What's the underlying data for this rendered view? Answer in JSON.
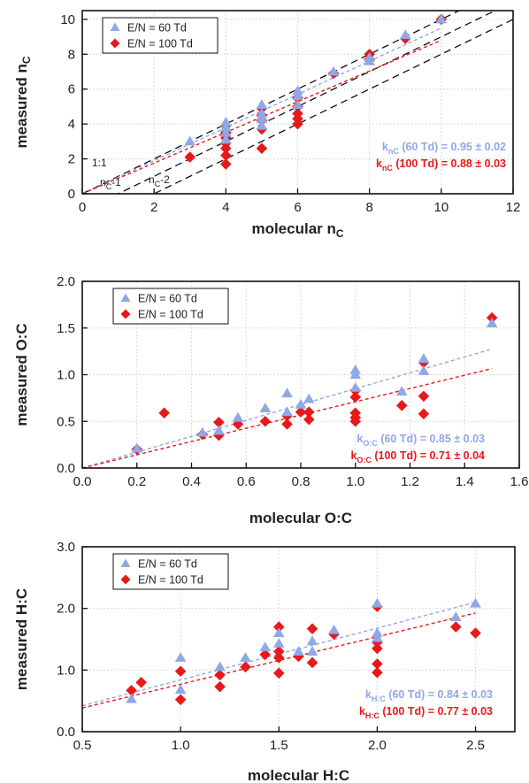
{
  "chart_data": [
    {
      "type": "scatter",
      "xlabel": "molecular n",
      "xlabel_sub": "C",
      "ylabel": "measured n",
      "ylabel_sub": "C",
      "xlim": [
        0,
        12
      ],
      "ylim": [
        0,
        10.5
      ],
      "xticks": [
        0,
        2,
        4,
        6,
        8,
        10,
        12
      ],
      "yticks": [
        0,
        2,
        4,
        6,
        8,
        10
      ],
      "tick_decimals": 0,
      "grid": true,
      "legend_position": "top-left",
      "series": [
        {
          "name": "E/N = 60 Td",
          "marker": "triangle",
          "color": "#8FA8E6",
          "fit_slope": 0.95,
          "points": [
            [
              3,
              3.0
            ],
            [
              4,
              4.1
            ],
            [
              4,
              3.8
            ],
            [
              4,
              3.5
            ],
            [
              4,
              3.1
            ],
            [
              5,
              5.1
            ],
            [
              5,
              4.6
            ],
            [
              5,
              4.3
            ],
            [
              5,
              3.9
            ],
            [
              6,
              5.9
            ],
            [
              6,
              5.6
            ],
            [
              6,
              5.1
            ],
            [
              7,
              7.0
            ],
            [
              8,
              7.8
            ],
            [
              8,
              7.6
            ],
            [
              9,
              9.1
            ],
            [
              10,
              10.0
            ]
          ]
        },
        {
          "name": "E/N = 100 Td",
          "marker": "diamond",
          "color": "#E8191B",
          "fit_slope": 0.88,
          "points": [
            [
              3,
              2.1
            ],
            [
              4,
              3.9
            ],
            [
              4,
              3.5
            ],
            [
              4,
              3.2
            ],
            [
              4,
              2.9
            ],
            [
              4,
              2.6
            ],
            [
              4,
              2.2
            ],
            [
              4,
              1.7
            ],
            [
              5,
              4.9
            ],
            [
              5,
              4.5
            ],
            [
              5,
              4.2
            ],
            [
              5,
              3.7
            ],
            [
              5,
              2.6
            ],
            [
              6,
              5.5
            ],
            [
              6,
              5.0
            ],
            [
              6,
              4.6
            ],
            [
              6,
              4.3
            ],
            [
              6,
              4.0
            ],
            [
              7,
              6.9
            ],
            [
              8,
              8.0
            ],
            [
              8,
              7.7
            ],
            [
              9,
              8.9
            ],
            [
              10,
              10.0
            ]
          ]
        }
      ],
      "reference_lines": [
        {
          "label": "1:1",
          "offset": 0
        },
        {
          "label": "n",
          "label_sub": "C",
          "label_tail": "-1",
          "offset": -1
        },
        {
          "label": "n",
          "label_sub": "C",
          "label_tail": "-2",
          "offset": -2
        }
      ],
      "annotations": [
        {
          "prefix": "k",
          "sub": "nC",
          "text": " (60 Td) = 0.95 ± 0.02",
          "color": "#8FA8E6"
        },
        {
          "prefix": "k",
          "sub": "nC",
          "text": " (100 Td) = 0.88 ± 0.03",
          "color": "#E8191B"
        }
      ]
    },
    {
      "type": "scatter",
      "xlabel": "molecular O:C",
      "ylabel": "measured O:C",
      "xlim": [
        0,
        1.6
      ],
      "ylim": [
        0,
        2.0
      ],
      "xticks": [
        0.0,
        0.2,
        0.4,
        0.6,
        0.8,
        1.0,
        1.2,
        1.4,
        1.6
      ],
      "yticks": [
        0.0,
        0.5,
        1.0,
        1.5,
        2.0
      ],
      "tick_decimals": 1,
      "grid": true,
      "legend_position": "top-left",
      "series": [
        {
          "name": "E/N = 60 Td",
          "marker": "triangle",
          "color": "#8FA8E6",
          "fit_slope": 0.85,
          "points": [
            [
              0.2,
              0.21
            ],
            [
              0.44,
              0.38
            ],
            [
              0.5,
              0.4
            ],
            [
              0.57,
              0.54
            ],
            [
              0.67,
              0.64
            ],
            [
              0.75,
              0.8
            ],
            [
              0.75,
              0.6
            ],
            [
              0.8,
              0.68
            ],
            [
              0.83,
              0.74
            ],
            [
              1.0,
              1.05
            ],
            [
              1.0,
              1.0
            ],
            [
              1.0,
              0.86
            ],
            [
              1.17,
              0.82
            ],
            [
              1.25,
              1.17
            ],
            [
              1.25,
              1.04
            ],
            [
              1.5,
              1.55
            ]
          ]
        },
        {
          "name": "E/N = 100 Td",
          "marker": "diamond",
          "color": "#E8191B",
          "fit_slope": 0.71,
          "points": [
            [
              0.2,
              0.2
            ],
            [
              0.3,
              0.59
            ],
            [
              0.44,
              0.36
            ],
            [
              0.5,
              0.49
            ],
            [
              0.5,
              0.35
            ],
            [
              0.57,
              0.47
            ],
            [
              0.67,
              0.5
            ],
            [
              0.75,
              0.56
            ],
            [
              0.75,
              0.47
            ],
            [
              0.8,
              0.6
            ],
            [
              0.83,
              0.6
            ],
            [
              0.83,
              0.52
            ],
            [
              1.0,
              0.83
            ],
            [
              1.0,
              0.76
            ],
            [
              1.0,
              0.59
            ],
            [
              1.0,
              0.54
            ],
            [
              1.0,
              0.5
            ],
            [
              1.17,
              0.67
            ],
            [
              1.25,
              1.13
            ],
            [
              1.25,
              0.77
            ],
            [
              1.25,
              0.58
            ],
            [
              1.5,
              1.61
            ]
          ]
        }
      ],
      "reference_lines": [],
      "annotations": [
        {
          "prefix": "k",
          "sub": "O:C",
          "text": " (60 Td) = 0.85 ± 0.03",
          "color": "#8FA8E6"
        },
        {
          "prefix": "k",
          "sub": "O:C",
          "text": " (100 Td) = 0.71 ± 0.04",
          "color": "#E8191B"
        }
      ]
    },
    {
      "type": "scatter",
      "xlabel": "molecular H:C",
      "ylabel": "measured H:C",
      "xlim": [
        0.5,
        2.7
      ],
      "ylim": [
        0,
        3.0
      ],
      "xticks": [
        0.5,
        1.0,
        1.5,
        2.0,
        2.5
      ],
      "yticks": [
        0.0,
        1.0,
        2.0,
        3.0
      ],
      "tick_decimals": 1,
      "grid": true,
      "legend_position": "top-left",
      "series": [
        {
          "name": "E/N = 60 Td",
          "marker": "triangle",
          "color": "#8FA8E6",
          "fit_slope": 0.84,
          "points": [
            [
              0.75,
              0.53
            ],
            [
              1.0,
              1.2
            ],
            [
              1.0,
              0.68
            ],
            [
              1.2,
              1.05
            ],
            [
              1.33,
              1.2
            ],
            [
              1.43,
              1.37
            ],
            [
              1.5,
              1.6
            ],
            [
              1.5,
              1.43
            ],
            [
              1.6,
              1.3
            ],
            [
              1.67,
              1.47
            ],
            [
              1.67,
              1.3
            ],
            [
              1.78,
              1.65
            ],
            [
              2.0,
              2.08
            ],
            [
              2.0,
              1.6
            ],
            [
              2.0,
              1.52
            ],
            [
              2.4,
              1.86
            ],
            [
              2.5,
              2.08
            ]
          ]
        },
        {
          "name": "E/N = 100 Td",
          "marker": "diamond",
          "color": "#E8191B",
          "fit_slope": 0.77,
          "points": [
            [
              0.75,
              0.67
            ],
            [
              0.8,
              0.8
            ],
            [
              1.0,
              0.98
            ],
            [
              1.0,
              0.52
            ],
            [
              1.2,
              0.92
            ],
            [
              1.2,
              0.73
            ],
            [
              1.33,
              1.05
            ],
            [
              1.43,
              1.25
            ],
            [
              1.5,
              1.7
            ],
            [
              1.5,
              1.3
            ],
            [
              1.5,
              1.2
            ],
            [
              1.5,
              0.95
            ],
            [
              1.6,
              1.22
            ],
            [
              1.67,
              1.67
            ],
            [
              1.67,
              1.12
            ],
            [
              1.78,
              1.58
            ],
            [
              2.0,
              2.03
            ],
            [
              2.0,
              1.45
            ],
            [
              2.0,
              1.35
            ],
            [
              2.0,
              1.1
            ],
            [
              2.0,
              0.96
            ],
            [
              2.4,
              1.7
            ],
            [
              2.5,
              1.6
            ]
          ]
        }
      ],
      "reference_lines": [],
      "annotations": [
        {
          "prefix": "k",
          "sub": "H:C",
          "text": " (60 Td) = 0.84 ± 0.03",
          "color": "#8FA8E6"
        },
        {
          "prefix": "k",
          "sub": "H:C",
          "text": " (100 Td) = 0.77 ± 0.03",
          "color": "#E8191B"
        }
      ]
    }
  ]
}
